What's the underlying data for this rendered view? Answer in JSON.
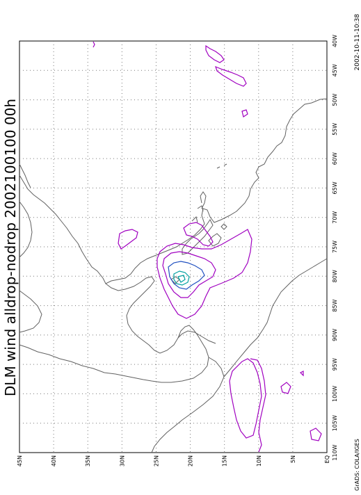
{
  "title": "DLM wind alldrop-nodrop 2002100100 00h",
  "timestamp": "2002-10-11-10:38",
  "credit": "GrADS: COLA/IGES",
  "lat_labels": [
    "45N",
    "40N",
    "35N",
    "30N",
    "25N",
    "20N",
    "15N",
    "10N",
    "5N",
    "EQ"
  ],
  "lon_labels": [
    "40W",
    "45W",
    "50W",
    "55W",
    "60W",
    "65W",
    "70W",
    "75W",
    "80W",
    "85W",
    "90W",
    "95W",
    "100W",
    "105W",
    "110W"
  ],
  "colors": {
    "coast": "#606060",
    "contour_purple": "#a000c0",
    "contour_blue": "#2050c0",
    "contour_cyan": "#00a0a0",
    "grid": "#606060",
    "frame": "#000000"
  }
}
